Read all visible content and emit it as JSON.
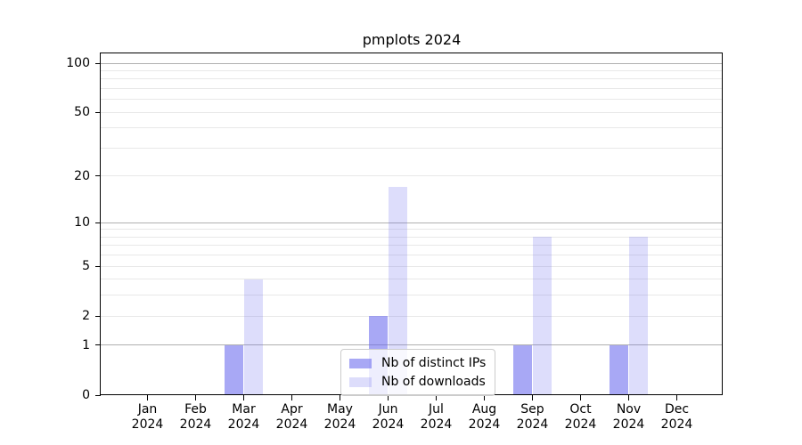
{
  "chart_data": {
    "type": "bar",
    "title": "pmplots 2024",
    "yscale": "log1p",
    "grid": "horizontal",
    "legend_position": "lower center",
    "categories": [
      "Jan 2024",
      "Feb 2024",
      "Mar 2024",
      "Apr 2024",
      "May 2024",
      "Jun 2024",
      "Jul 2024",
      "Aug 2024",
      "Sep 2024",
      "Oct 2024",
      "Nov 2024",
      "Dec 2024"
    ],
    "series": [
      {
        "name": "Nb of distinct IPs",
        "color": "rgba(102,102,238,0.57)",
        "values": [
          0,
          0,
          1,
          0,
          0,
          2,
          0,
          0,
          1,
          0,
          1,
          0
        ]
      },
      {
        "name": "Nb of downloads",
        "color": "rgba(102,102,238,0.22)",
        "values": [
          0,
          0,
          4,
          0,
          0,
          17,
          0,
          0,
          8,
          0,
          8,
          0
        ]
      }
    ],
    "y_ticks": [
      0,
      1,
      2,
      5,
      10,
      20,
      50,
      100
    ],
    "y_major_gridlines": [
      1,
      10,
      100
    ],
    "y_minor_gridlines": [
      2,
      3,
      4,
      5,
      6,
      7,
      8,
      9,
      20,
      30,
      40,
      50,
      60,
      70,
      80,
      90
    ],
    "ylim": [
      0,
      115
    ]
  },
  "colors": {
    "background": "#ffffff",
    "axis": "#000000",
    "grid_major": "#b0b0b0",
    "grid_minor": "#e8e8e8",
    "legend_border": "#cccccc"
  }
}
